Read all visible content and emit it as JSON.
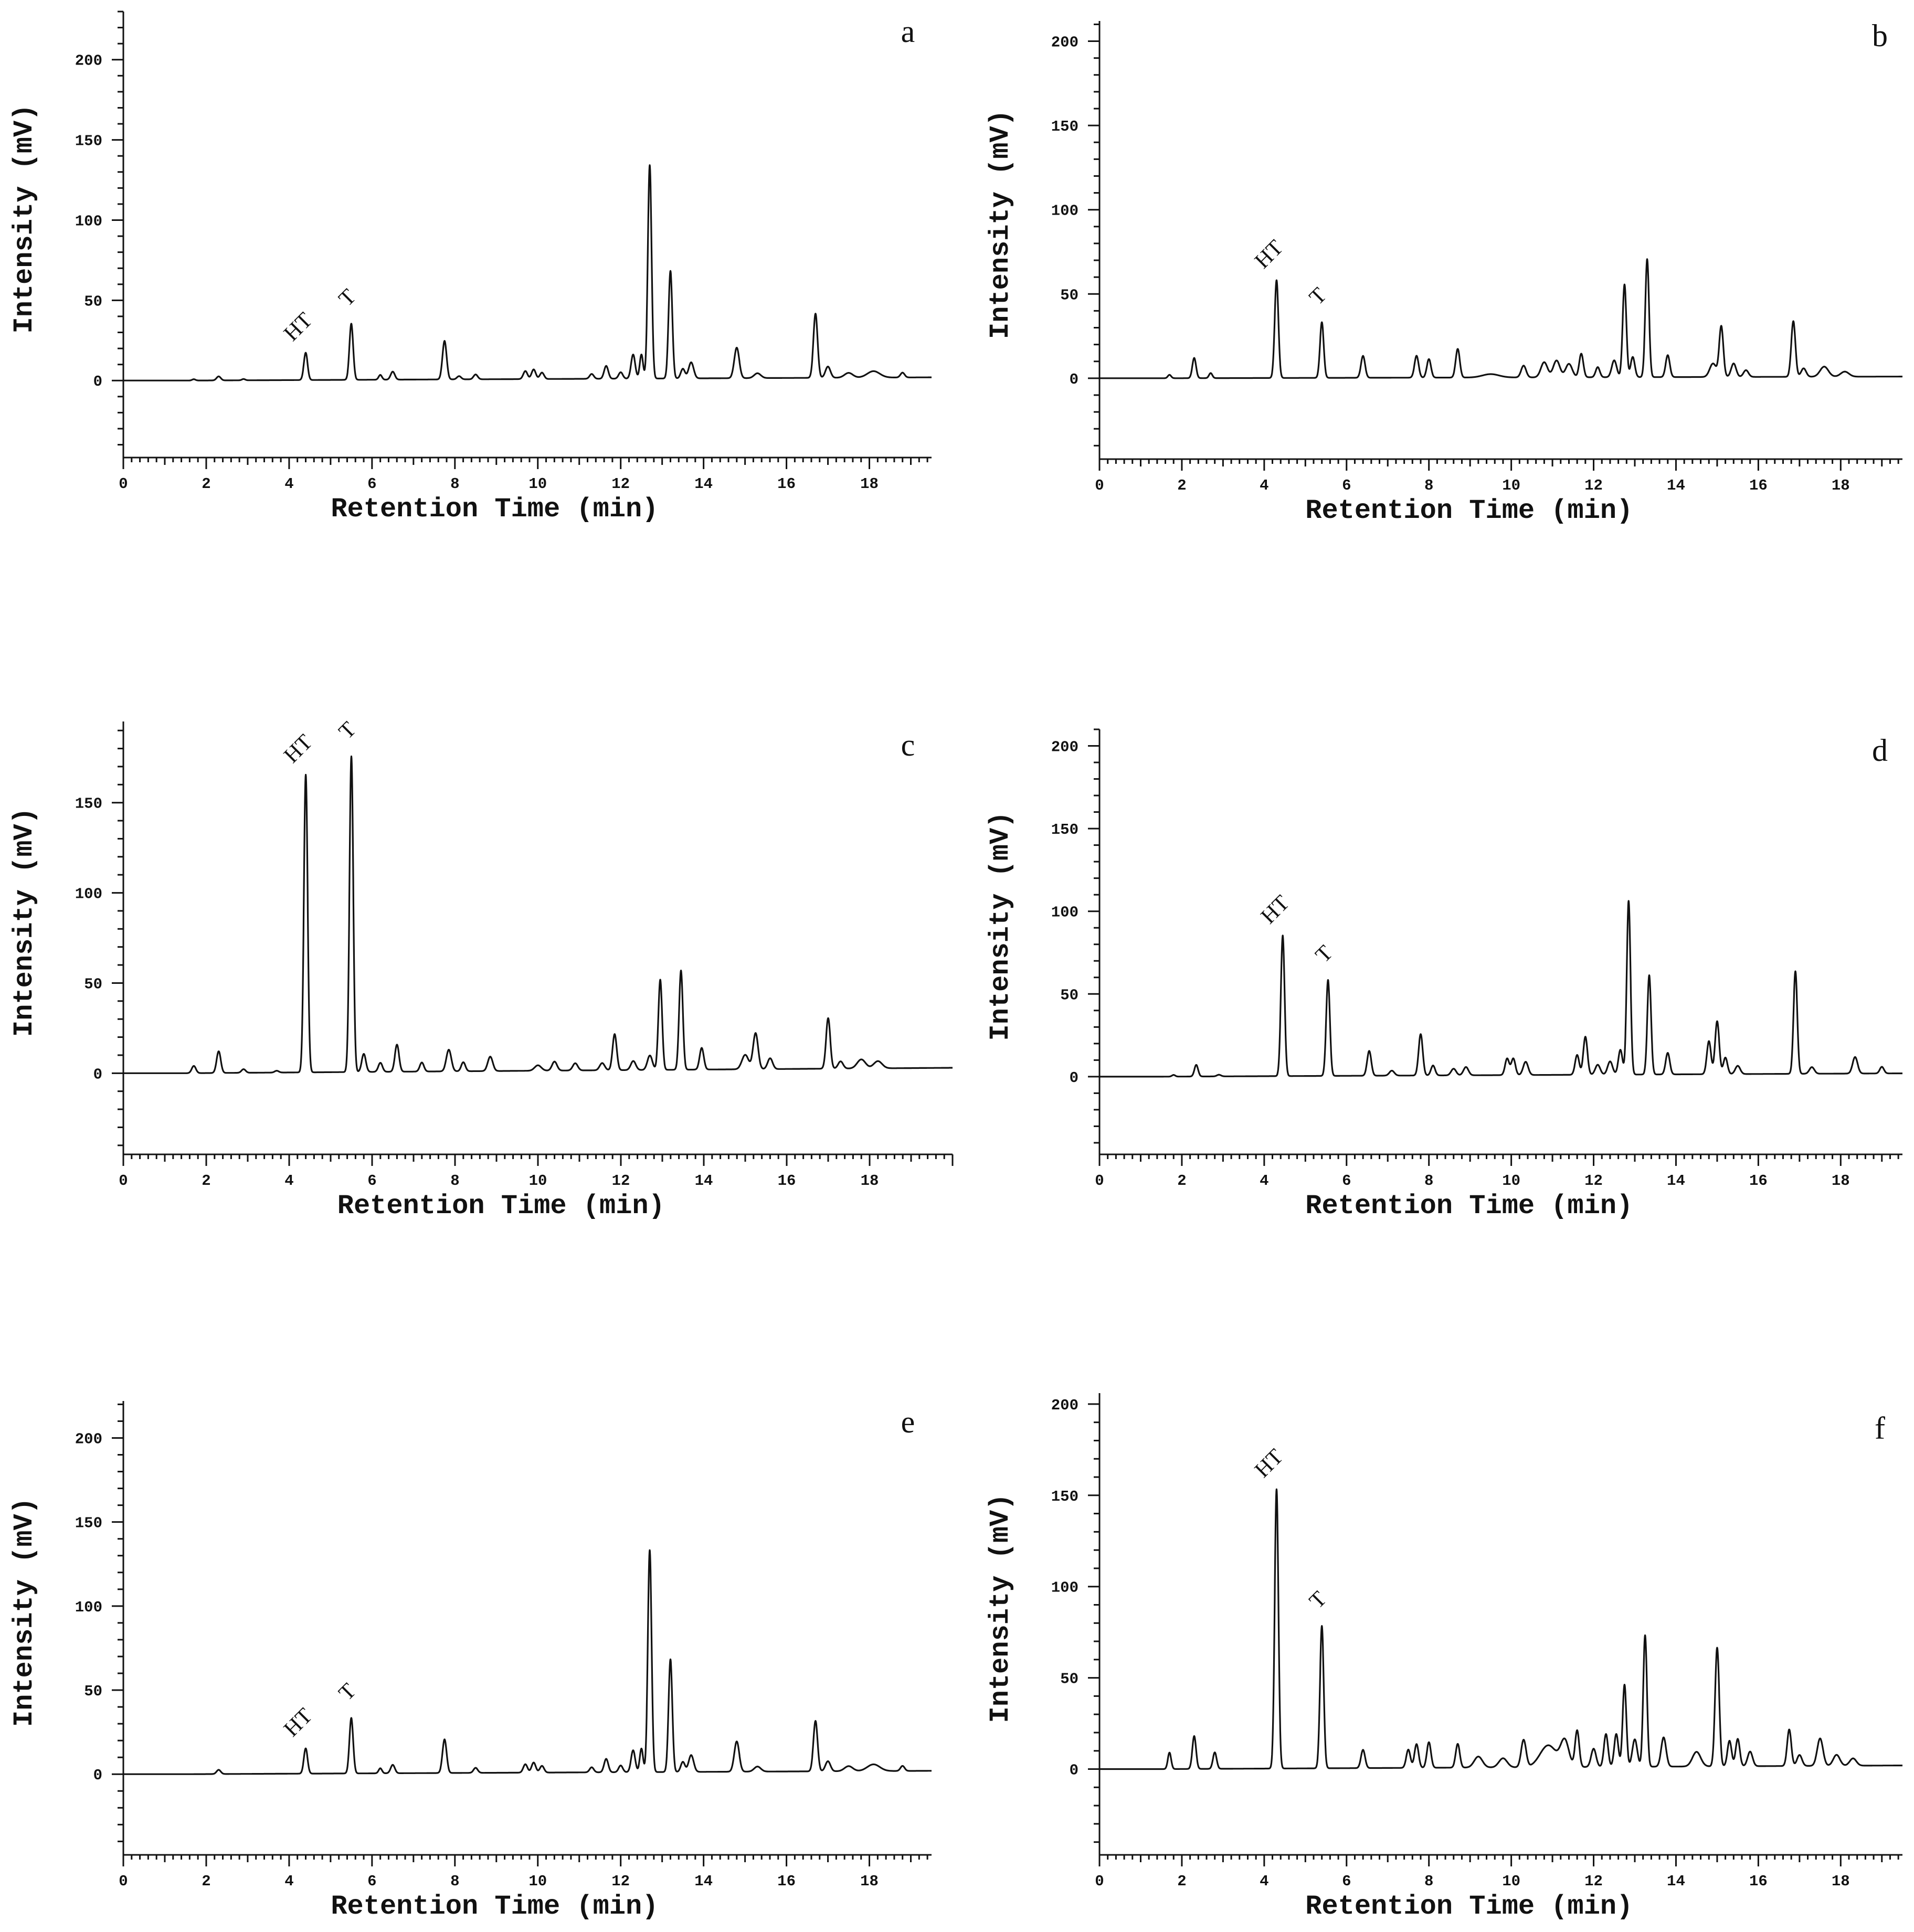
{
  "chart_data": [
    {
      "panel": "a",
      "type": "line",
      "xlabel": "Retention Time (min)",
      "ylabel": "Intensity (mV)",
      "xlim": [
        0,
        19.5
      ],
      "ylim": [
        -48,
        230
      ],
      "xticks": [
        0,
        2,
        4,
        6,
        8,
        10,
        12,
        14,
        16,
        18
      ],
      "yticks": [
        0,
        50,
        100,
        150,
        200
      ],
      "baseline_end": 2,
      "peaks": [
        [
          1.7,
          0.8,
          0.04
        ],
        [
          2.3,
          2.5,
          0.05
        ],
        [
          2.9,
          0.8,
          0.04
        ],
        [
          4.4,
          17,
          0.045
        ],
        [
          5.5,
          35,
          0.045
        ],
        [
          6.2,
          3,
          0.04
        ],
        [
          6.5,
          5,
          0.05
        ],
        [
          7.75,
          24,
          0.05
        ],
        [
          8.1,
          2,
          0.05
        ],
        [
          8.5,
          3,
          0.05
        ],
        [
          9.7,
          5,
          0.05
        ],
        [
          9.9,
          6,
          0.05
        ],
        [
          10.1,
          4,
          0.05
        ],
        [
          11.3,
          3,
          0.05
        ],
        [
          11.65,
          8,
          0.05
        ],
        [
          12.0,
          4,
          0.05
        ],
        [
          12.3,
          15,
          0.05
        ],
        [
          12.5,
          15,
          0.04
        ],
        [
          12.7,
          133,
          0.045
        ],
        [
          13.2,
          67,
          0.045
        ],
        [
          13.5,
          6,
          0.05
        ],
        [
          13.7,
          10,
          0.06
        ],
        [
          14.8,
          19,
          0.06
        ],
        [
          15.3,
          3,
          0.08
        ],
        [
          16.7,
          40,
          0.05
        ],
        [
          17.0,
          7,
          0.06
        ],
        [
          17.5,
          3,
          0.1
        ],
        [
          18.1,
          4,
          0.15
        ],
        [
          18.8,
          3,
          0.05
        ]
      ],
      "peak_labels": [
        {
          "text": "HT",
          "x": 4.4,
          "y": 17
        },
        {
          "text": "T",
          "x": 5.5,
          "y": 35
        }
      ]
    },
    {
      "panel": "b",
      "type": "line",
      "xlabel": "Retention Time (min)",
      "ylabel": "Intensity (mV)",
      "xlim": [
        0,
        19.5
      ],
      "ylim": [
        -48,
        212
      ],
      "xticks": [
        0,
        2,
        4,
        6,
        8,
        10,
        12,
        14,
        16,
        18
      ],
      "yticks": [
        0,
        50,
        100,
        150,
        200
      ],
      "baseline_end": 1,
      "peaks": [
        [
          1.7,
          2,
          0.04
        ],
        [
          2.3,
          12,
          0.045
        ],
        [
          2.7,
          3,
          0.04
        ],
        [
          4.3,
          58,
          0.045
        ],
        [
          5.4,
          33,
          0.045
        ],
        [
          6.4,
          13,
          0.05
        ],
        [
          7.7,
          13,
          0.05
        ],
        [
          8.0,
          11,
          0.05
        ],
        [
          8.7,
          17,
          0.05
        ],
        [
          9.5,
          2,
          0.2
        ],
        [
          10.3,
          7,
          0.06
        ],
        [
          10.8,
          9,
          0.08
        ],
        [
          11.1,
          10,
          0.08
        ],
        [
          11.4,
          8,
          0.08
        ],
        [
          11.7,
          14,
          0.05
        ],
        [
          12.1,
          6,
          0.05
        ],
        [
          12.5,
          10,
          0.06
        ],
        [
          12.75,
          55,
          0.045
        ],
        [
          12.95,
          12,
          0.05
        ],
        [
          13.3,
          70,
          0.045
        ],
        [
          13.8,
          13,
          0.05
        ],
        [
          14.9,
          8,
          0.08
        ],
        [
          15.1,
          30,
          0.05
        ],
        [
          15.4,
          8,
          0.06
        ],
        [
          15.7,
          4,
          0.06
        ],
        [
          16.85,
          33,
          0.05
        ],
        [
          17.1,
          5,
          0.06
        ],
        [
          17.6,
          6,
          0.1
        ],
        [
          18.1,
          3,
          0.1
        ]
      ],
      "peak_labels": [
        {
          "text": "HT",
          "x": 4.3,
          "y": 58
        },
        {
          "text": "T",
          "x": 5.4,
          "y": 33
        }
      ]
    },
    {
      "panel": "c",
      "type": "line",
      "xlabel": "Retention Time (min)",
      "ylabel": "Intensity (mV)",
      "xlim": [
        0,
        20
      ],
      "ylim": [
        -45,
        195
      ],
      "xticks": [
        0,
        2,
        4,
        6,
        8,
        10,
        12,
        14,
        16,
        18
      ],
      "yticks": [
        0,
        50,
        100,
        150
      ],
      "baseline_end": 3,
      "peaks": [
        [
          1.7,
          4,
          0.05
        ],
        [
          2.3,
          12,
          0.05
        ],
        [
          2.9,
          2,
          0.05
        ],
        [
          3.7,
          1,
          0.05
        ],
        [
          4.4,
          165,
          0.045
        ],
        [
          5.5,
          175,
          0.045
        ],
        [
          5.8,
          10,
          0.05
        ],
        [
          6.2,
          5,
          0.05
        ],
        [
          6.6,
          15,
          0.05
        ],
        [
          7.2,
          5,
          0.05
        ],
        [
          7.85,
          12,
          0.06
        ],
        [
          8.2,
          5,
          0.05
        ],
        [
          8.85,
          8,
          0.06
        ],
        [
          10.0,
          3,
          0.08
        ],
        [
          10.4,
          5,
          0.06
        ],
        [
          10.9,
          4,
          0.06
        ],
        [
          11.55,
          4,
          0.06
        ],
        [
          11.85,
          20,
          0.05
        ],
        [
          12.3,
          5,
          0.06
        ],
        [
          12.7,
          8,
          0.06
        ],
        [
          12.95,
          50,
          0.045
        ],
        [
          13.45,
          55,
          0.045
        ],
        [
          13.95,
          12,
          0.05
        ],
        [
          15.0,
          8,
          0.08
        ],
        [
          15.25,
          20,
          0.06
        ],
        [
          15.6,
          6,
          0.06
        ],
        [
          17.0,
          28,
          0.05
        ],
        [
          17.3,
          4,
          0.06
        ],
        [
          17.8,
          5,
          0.1
        ],
        [
          18.2,
          4,
          0.1
        ]
      ],
      "peak_labels": [
        {
          "text": "HT",
          "x": 4.4,
          "y": 165
        },
        {
          "text": "T",
          "x": 5.5,
          "y": 175
        }
      ]
    },
    {
      "panel": "d",
      "type": "line",
      "xlabel": "Retention Time (min)",
      "ylabel": "Intensity (mV)",
      "xlim": [
        0,
        19.5
      ],
      "ylim": [
        -47,
        210
      ],
      "xticks": [
        0,
        2,
        4,
        6,
        8,
        10,
        12,
        14,
        16,
        18
      ],
      "yticks": [
        0,
        50,
        100,
        150,
        200
      ],
      "baseline_end": 2,
      "peaks": [
        [
          1.8,
          1,
          0.04
        ],
        [
          2.35,
          7,
          0.045
        ],
        [
          2.9,
          1,
          0.05
        ],
        [
          4.45,
          85,
          0.045
        ],
        [
          5.55,
          58,
          0.045
        ],
        [
          6.55,
          15,
          0.05
        ],
        [
          7.1,
          3,
          0.06
        ],
        [
          7.8,
          25,
          0.05
        ],
        [
          8.1,
          6,
          0.05
        ],
        [
          8.6,
          4,
          0.06
        ],
        [
          8.9,
          5,
          0.06
        ],
        [
          9.9,
          10,
          0.05
        ],
        [
          10.05,
          10,
          0.05
        ],
        [
          10.35,
          8,
          0.06
        ],
        [
          11.6,
          12,
          0.05
        ],
        [
          11.8,
          23,
          0.05
        ],
        [
          12.1,
          6,
          0.06
        ],
        [
          12.4,
          8,
          0.06
        ],
        [
          12.65,
          15,
          0.05
        ],
        [
          12.85,
          105,
          0.045
        ],
        [
          13.35,
          60,
          0.045
        ],
        [
          13.8,
          13,
          0.05
        ],
        [
          14.8,
          20,
          0.05
        ],
        [
          15.0,
          32,
          0.05
        ],
        [
          15.2,
          10,
          0.05
        ],
        [
          15.5,
          5,
          0.06
        ],
        [
          16.9,
          62,
          0.045
        ],
        [
          17.3,
          4,
          0.06
        ],
        [
          18.35,
          10,
          0.06
        ],
        [
          19.0,
          4,
          0.05
        ]
      ],
      "peak_labels": [
        {
          "text": "HT",
          "x": 4.45,
          "y": 85
        },
        {
          "text": "T",
          "x": 5.55,
          "y": 58
        }
      ]
    },
    {
      "panel": "e",
      "type": "line",
      "xlabel": "Retention Time (min)",
      "ylabel": "Intensity (mV)",
      "xlim": [
        0,
        19.5
      ],
      "ylim": [
        -48,
        222
      ],
      "xticks": [
        0,
        2,
        4,
        6,
        8,
        10,
        12,
        14,
        16,
        18
      ],
      "yticks": [
        0,
        50,
        100,
        150,
        200
      ],
      "baseline_end": 2,
      "peaks": [
        [
          2.3,
          2.5,
          0.05
        ],
        [
          4.4,
          15,
          0.045
        ],
        [
          5.5,
          33,
          0.045
        ],
        [
          6.2,
          3,
          0.04
        ],
        [
          6.5,
          5,
          0.05
        ],
        [
          7.75,
          20,
          0.05
        ],
        [
          8.5,
          3,
          0.05
        ],
        [
          9.7,
          5,
          0.05
        ],
        [
          9.9,
          6,
          0.05
        ],
        [
          10.1,
          4,
          0.05
        ],
        [
          11.3,
          3,
          0.05
        ],
        [
          11.65,
          8,
          0.05
        ],
        [
          12.0,
          4,
          0.05
        ],
        [
          12.3,
          13,
          0.05
        ],
        [
          12.5,
          14,
          0.04
        ],
        [
          12.7,
          132,
          0.045
        ],
        [
          13.2,
          67,
          0.045
        ],
        [
          13.5,
          6,
          0.05
        ],
        [
          13.7,
          10,
          0.06
        ],
        [
          14.8,
          18,
          0.06
        ],
        [
          15.3,
          3,
          0.08
        ],
        [
          16.7,
          30,
          0.05
        ],
        [
          17.0,
          6,
          0.06
        ],
        [
          17.5,
          3,
          0.1
        ],
        [
          18.1,
          4,
          0.15
        ],
        [
          18.8,
          3,
          0.05
        ]
      ],
      "peak_labels": [
        {
          "text": "HT",
          "x": 4.4,
          "y": 15
        },
        {
          "text": "T",
          "x": 5.5,
          "y": 33
        }
      ]
    },
    {
      "panel": "f",
      "type": "line",
      "xlabel": "Retention Time (min)",
      "ylabel": "Intensity (mV)",
      "xlim": [
        0,
        19.5
      ],
      "ylim": [
        -47,
        206
      ],
      "xticks": [
        0,
        2,
        4,
        6,
        8,
        10,
        12,
        14,
        16,
        18
      ],
      "yticks": [
        0,
        50,
        100,
        150,
        200
      ],
      "baseline_end": 2,
      "peaks": [
        [
          1.7,
          9,
          0.04
        ],
        [
          2.3,
          18,
          0.045
        ],
        [
          2.8,
          9,
          0.045
        ],
        [
          4.3,
          153,
          0.045
        ],
        [
          5.4,
          78,
          0.045
        ],
        [
          6.4,
          10,
          0.05
        ],
        [
          7.5,
          10,
          0.05
        ],
        [
          7.7,
          13,
          0.05
        ],
        [
          8.0,
          14,
          0.05
        ],
        [
          8.7,
          13,
          0.05
        ],
        [
          9.2,
          6,
          0.1
        ],
        [
          9.8,
          5,
          0.1
        ],
        [
          10.3,
          15,
          0.06
        ],
        [
          10.9,
          12,
          0.2
        ],
        [
          11.3,
          14,
          0.1
        ],
        [
          11.6,
          20,
          0.05
        ],
        [
          12.0,
          10,
          0.06
        ],
        [
          12.3,
          18,
          0.05
        ],
        [
          12.55,
          18,
          0.05
        ],
        [
          12.75,
          45,
          0.045
        ],
        [
          13.0,
          15,
          0.06
        ],
        [
          13.25,
          72,
          0.045
        ],
        [
          13.7,
          16,
          0.06
        ],
        [
          14.5,
          8,
          0.1
        ],
        [
          15.0,
          65,
          0.05
        ],
        [
          15.3,
          14,
          0.05
        ],
        [
          15.5,
          15,
          0.05
        ],
        [
          15.8,
          8,
          0.06
        ],
        [
          16.75,
          20,
          0.05
        ],
        [
          17.0,
          6,
          0.06
        ],
        [
          17.5,
          15,
          0.07
        ],
        [
          17.9,
          6,
          0.08
        ],
        [
          18.3,
          4,
          0.08
        ]
      ],
      "peak_labels": [
        {
          "text": "HT",
          "x": 4.3,
          "y": 153
        },
        {
          "text": "T",
          "x": 5.4,
          "y": 78
        }
      ]
    }
  ]
}
